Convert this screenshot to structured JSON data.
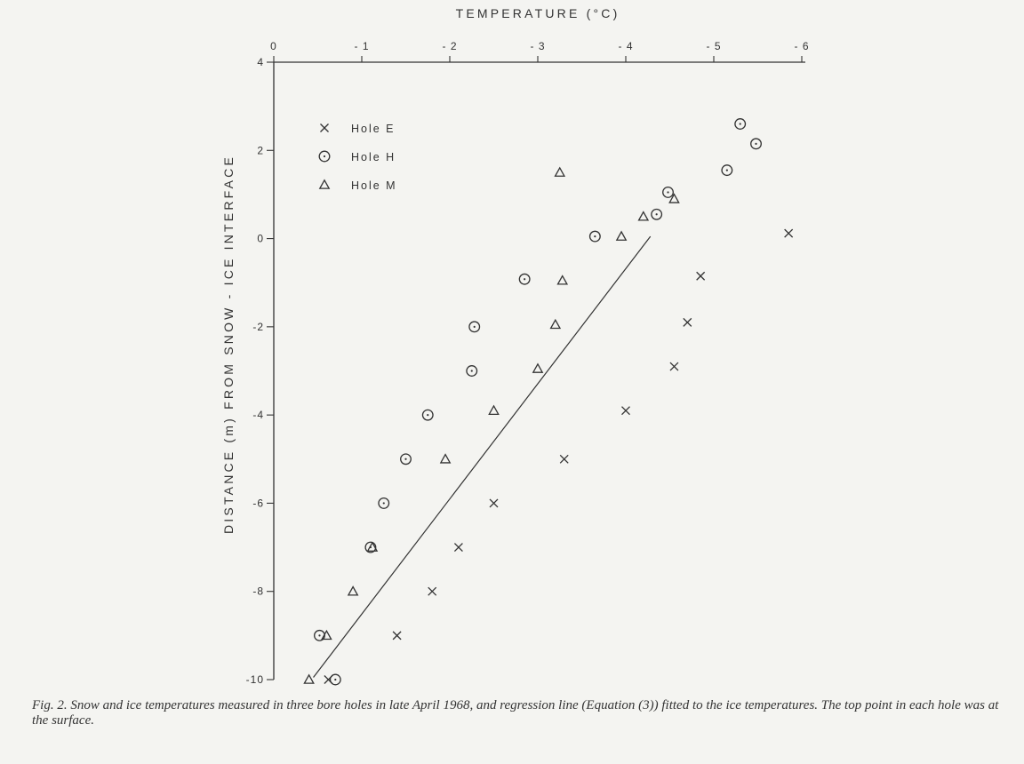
{
  "caption": {
    "label": "Fig. 2.",
    "text": "Snow and ice temperatures measured in three bore holes in late April 1968, and regression line (Equation (3)) fitted to the ice temperatures. The top point in each hole was at the surface."
  },
  "chart_data": {
    "type": "scatter",
    "title": "",
    "xlabel": "TEMPERATURE (°C)",
    "ylabel": "DISTANCE (m) FROM SNOW - ICE INTERFACE",
    "xlim": [
      0,
      -6
    ],
    "ylim": [
      -10,
      4
    ],
    "x_axis_position": "top",
    "x_ticks": [
      0,
      -1,
      -2,
      -3,
      -4,
      -5,
      -6
    ],
    "x_tick_labels": [
      "0",
      "- 1",
      "- 2",
      "- 3",
      "- 4",
      "- 5",
      "- 6"
    ],
    "y_ticks": [
      4,
      2,
      0,
      -2,
      -4,
      -6,
      -8,
      -10
    ],
    "y_tick_labels": [
      "4",
      "2",
      "0",
      "-2",
      "-4",
      "-6",
      "-8",
      "-10"
    ],
    "grid": false,
    "legend_position": "top-left",
    "series": [
      {
        "name": "Hole E",
        "marker": "x",
        "points": [
          [
            -0.62,
            -10
          ],
          [
            -1.4,
            -9
          ],
          [
            -1.8,
            -8
          ],
          [
            -2.1,
            -7
          ],
          [
            -2.5,
            -6
          ],
          [
            -3.3,
            -5
          ],
          [
            -4.0,
            -3.9
          ],
          [
            -4.55,
            -2.9
          ],
          [
            -4.7,
            -1.9
          ],
          [
            -4.85,
            -0.85
          ],
          [
            -5.85,
            0.12
          ]
        ]
      },
      {
        "name": "Hole H",
        "marker": "o",
        "points": [
          [
            -0.7,
            -10
          ],
          [
            -0.52,
            -9
          ],
          [
            -1.1,
            -7
          ],
          [
            -1.25,
            -6
          ],
          [
            -1.5,
            -5
          ],
          [
            -1.75,
            -4
          ],
          [
            -2.25,
            -3
          ],
          [
            -2.28,
            -2
          ],
          [
            -2.85,
            -0.92
          ],
          [
            -3.65,
            0.05
          ],
          [
            -4.35,
            0.55
          ],
          [
            -4.48,
            1.05
          ],
          [
            -5.15,
            1.55
          ],
          [
            -5.48,
            2.15
          ],
          [
            -5.3,
            2.6
          ]
        ]
      },
      {
        "name": "Hole M",
        "marker": "triangle",
        "points": [
          [
            -0.4,
            -10
          ],
          [
            -0.6,
            -9
          ],
          [
            -0.9,
            -8
          ],
          [
            -1.12,
            -7
          ],
          [
            -1.95,
            -5
          ],
          [
            -2.5,
            -3.9
          ],
          [
            -3.0,
            -2.95
          ],
          [
            -3.2,
            -1.95
          ],
          [
            -3.28,
            -0.95
          ],
          [
            -3.95,
            0.05
          ],
          [
            -4.2,
            0.5
          ],
          [
            -4.55,
            0.9
          ],
          [
            -3.25,
            1.5
          ]
        ]
      }
    ],
    "regression_line": {
      "from": [
        -0.45,
        -9.95
      ],
      "to": [
        -4.28,
        0.05
      ]
    }
  }
}
